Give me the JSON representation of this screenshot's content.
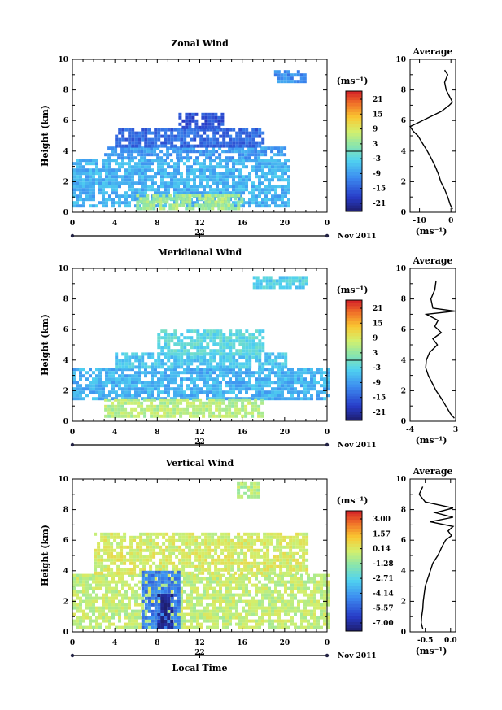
{
  "panels": [
    {
      "title": "Zonal Wind",
      "ylabel": "Height (km)",
      "y_ticks": [
        "0",
        "2",
        "4",
        "6",
        "8",
        "10"
      ],
      "x_ticks": [
        "0",
        "4",
        "8",
        "12",
        "16",
        "20",
        "0"
      ],
      "date_day": "22",
      "date_month": "Nov 2011",
      "colorbar_unit": "(ms⁻¹)",
      "colorbar_ticks": [
        "21",
        "15",
        "9",
        "3",
        "-3",
        "-9",
        "-15",
        "-21"
      ],
      "avg_title": "Average",
      "avg_x_ticks": [
        "-10",
        "0"
      ],
      "avg_xlabel": "(ms⁻¹)"
    },
    {
      "title": "Meridional Wind",
      "ylabel": "Height (km)",
      "y_ticks": [
        "0",
        "2",
        "4",
        "6",
        "8",
        "10"
      ],
      "x_ticks": [
        "0",
        "4",
        "8",
        "12",
        "16",
        "20",
        "0"
      ],
      "date_day": "22",
      "date_month": "Nov 2011",
      "colorbar_unit": "(ms⁻¹)",
      "colorbar_ticks": [
        "21",
        "15",
        "9",
        "3",
        "-3",
        "-9",
        "-15",
        "-21"
      ],
      "avg_title": "Average",
      "avg_x_ticks": [
        "-4",
        "3"
      ],
      "avg_xlabel": "(ms⁻¹)"
    },
    {
      "title": "Vertical Wind",
      "ylabel": "Height (km)",
      "y_ticks": [
        "0",
        "2",
        "4",
        "6",
        "8",
        "10"
      ],
      "x_ticks": [
        "0",
        "4",
        "8",
        "12",
        "16",
        "20",
        "0"
      ],
      "date_day": "22",
      "date_month": "Nov 2011",
      "colorbar_unit": "(ms⁻¹)",
      "colorbar_ticks": [
        "3.00",
        "1.57",
        "0.14",
        "-1.28",
        "-2.71",
        "-4.14",
        "-5.57",
        "-7.00"
      ],
      "avg_title": "Average",
      "avg_x_ticks": [
        "-0.5",
        "0.0"
      ],
      "avg_xlabel": "(ms⁻¹)",
      "xlabel": "Local Time"
    }
  ],
  "chart_data": [
    {
      "type": "heatmap",
      "title": "Zonal Wind",
      "xlabel": "",
      "ylabel": "Height (km)",
      "xlim": [
        0,
        24
      ],
      "ylim": [
        0,
        10
      ],
      "colorbar": {
        "unit": "ms-1",
        "min": -21,
        "max": 21
      },
      "regions": [
        {
          "x": [
            0,
            20.5
          ],
          "y": [
            0.5,
            3.5
          ],
          "value": -6
        },
        {
          "x": [
            3,
            20
          ],
          "y": [
            3.5,
            4.3
          ],
          "value": -8
        },
        {
          "x": [
            4,
            18
          ],
          "y": [
            4.3,
            5.5
          ],
          "value": -12
        },
        {
          "x": [
            10,
            14
          ],
          "y": [
            5.5,
            6.5
          ],
          "value": -14
        },
        {
          "x": [
            6,
            16
          ],
          "y": [
            0.2,
            1.2
          ],
          "value": 4
        },
        {
          "x": [
            19,
            22
          ],
          "y": [
            8.5,
            9.3
          ],
          "value": -9
        }
      ],
      "average_profile": {
        "xlim": [
          -13,
          1.5
        ],
        "height": [
          0.2,
          0.5,
          1.0,
          1.5,
          2.0,
          2.5,
          3.0,
          3.5,
          4.0,
          4.5,
          5.0,
          5.3,
          5.6,
          5.9,
          6.2,
          6.6,
          7.0,
          7.2,
          8.0,
          8.5,
          9.0,
          9.3
        ],
        "value": [
          0.5,
          -0.2,
          -1.0,
          -2.0,
          -3.2,
          -4.0,
          -5.0,
          -6.2,
          -7.5,
          -9.0,
          -10.5,
          -12.0,
          -13.0,
          -10.0,
          -7.0,
          -3.0,
          -0.5,
          0.5,
          -1.5,
          -2.0,
          -1.0,
          -2.0
        ]
      }
    },
    {
      "type": "heatmap",
      "title": "Meridional Wind",
      "xlabel": "",
      "ylabel": "Height (km)",
      "xlim": [
        0,
        24
      ],
      "ylim": [
        0,
        10
      ],
      "colorbar": {
        "unit": "ms-1",
        "min": -21,
        "max": 21
      },
      "regions": [
        {
          "x": [
            0,
            24
          ],
          "y": [
            1.5,
            3.5
          ],
          "value": -6
        },
        {
          "x": [
            4,
            20
          ],
          "y": [
            3.5,
            4.5
          ],
          "value": -4
        },
        {
          "x": [
            3,
            18
          ],
          "y": [
            0.3,
            1.5
          ],
          "value": 5
        },
        {
          "x": [
            8,
            18
          ],
          "y": [
            4.5,
            6.0
          ],
          "value": -2
        },
        {
          "x": [
            17,
            22
          ],
          "y": [
            8.8,
            9.5
          ],
          "value": -3
        }
      ],
      "average_profile": {
        "xlim": [
          -4,
          3
        ],
        "height": [
          0.2,
          0.5,
          1.0,
          1.5,
          2.0,
          2.5,
          3.0,
          3.5,
          4.0,
          4.5,
          5.0,
          5.4,
          5.8,
          6.2,
          6.6,
          7.0,
          7.2,
          7.4,
          8.0,
          8.6,
          9.2
        ],
        "value": [
          2.8,
          2.2,
          1.5,
          0.8,
          0.0,
          -0.6,
          -1.2,
          -1.6,
          -1.5,
          -1.0,
          0.2,
          -0.5,
          0.8,
          -0.2,
          0.3,
          -1.5,
          2.9,
          -0.5,
          -0.8,
          -0.2,
          0.0
        ]
      }
    },
    {
      "type": "heatmap",
      "title": "Vertical Wind",
      "xlabel": "Local Time",
      "ylabel": "Height (km)",
      "xlim": [
        0,
        24
      ],
      "ylim": [
        0,
        10
      ],
      "colorbar": {
        "unit": "ms-1",
        "min": -7.0,
        "max": 3.0
      },
      "regions": [
        {
          "x": [
            0,
            24
          ],
          "y": [
            0.3,
            3.8
          ],
          "value": -0.6
        },
        {
          "x": [
            2,
            22
          ],
          "y": [
            3.8,
            6.5
          ],
          "value": -0.3
        },
        {
          "x": [
            6.5,
            10
          ],
          "y": [
            0.3,
            4.0
          ],
          "value": -4.5
        },
        {
          "x": [
            8,
            9.5
          ],
          "y": [
            0.3,
            2.5
          ],
          "value": -6.5
        },
        {
          "x": [
            15.5,
            17.5
          ],
          "y": [
            8.8,
            9.8
          ],
          "value": -0.8
        }
      ],
      "average_profile": {
        "xlim": [
          -0.8,
          0.1
        ],
        "height": [
          0.2,
          0.6,
          1.0,
          1.5,
          2.0,
          2.5,
          3.0,
          3.5,
          4.0,
          4.5,
          5.0,
          5.5,
          6.0,
          6.3,
          6.6,
          6.9,
          7.2,
          7.5,
          7.8,
          8.1,
          8.5,
          9.0,
          9.5
        ],
        "value": [
          -0.55,
          -0.58,
          -0.57,
          -0.55,
          -0.54,
          -0.52,
          -0.5,
          -0.45,
          -0.4,
          -0.35,
          -0.25,
          -0.18,
          -0.1,
          0.02,
          -0.05,
          0.05,
          -0.4,
          0.05,
          -0.3,
          0.05,
          -0.5,
          -0.62,
          -0.55
        ]
      }
    }
  ]
}
